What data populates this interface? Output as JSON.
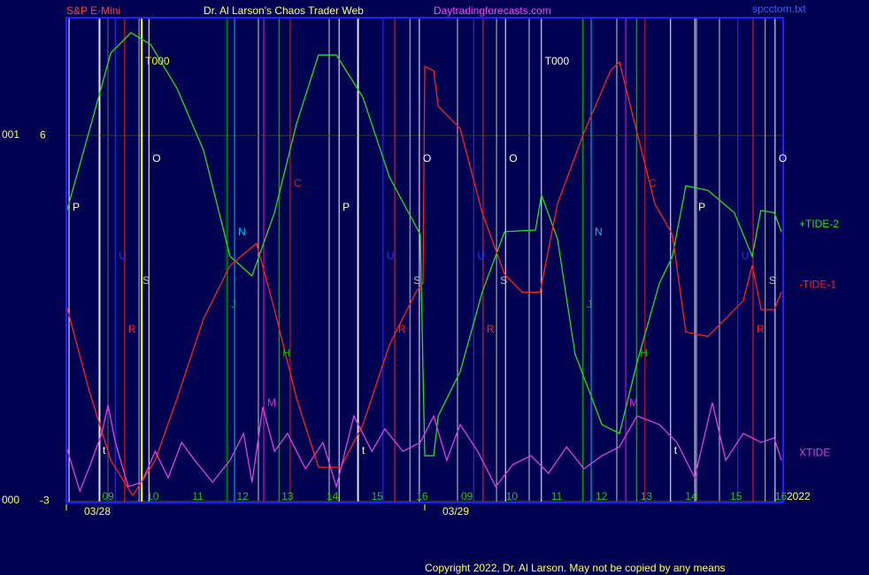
{
  "chart_data": {
    "type": "line",
    "title": "Dr. Al Larson's Chaos Trader Web",
    "instrument": "S&P E-Mini",
    "website": "Daytradingforecasts.com",
    "file_name": "spcctom.txt",
    "copyright": "Copyright 2022, Dr. Al Larson. May not be copied by any means",
    "year": "2022",
    "left_labels": [
      "001",
      "000"
    ],
    "xlim": [
      -0.93,
      15.05
    ],
    "ylim": [
      -3.04,
      8.9
    ],
    "yticks": [
      -3,
      6
    ],
    "grid": true,
    "xticks": [
      {
        "value": 0,
        "label": "09"
      },
      {
        "value": 1,
        "label": "10"
      },
      {
        "value": 2,
        "label": "11"
      },
      {
        "value": 3,
        "label": "12"
      },
      {
        "value": 4,
        "label": "13"
      },
      {
        "value": 5,
        "label": "14"
      },
      {
        "value": 6,
        "label": "15"
      },
      {
        "value": 7,
        "label": "16"
      },
      {
        "value": 8,
        "label": "09"
      },
      {
        "value": 9,
        "label": "10"
      },
      {
        "value": 10,
        "label": "11"
      },
      {
        "value": 11,
        "label": "12"
      },
      {
        "value": 12,
        "label": "13"
      },
      {
        "value": 13,
        "label": "14"
      },
      {
        "value": 14,
        "label": "15"
      },
      {
        "value": 15,
        "label": "16"
      }
    ],
    "date_ticks": [
      {
        "value": -0.93,
        "label": "03/28"
      },
      {
        "value": 7.06,
        "label": "03/29"
      }
    ],
    "series": [
      {
        "name": "+TIDE-2",
        "color": "#20e020",
        "x": [
          -0.93,
          -0.43,
          0.06,
          0.51,
          0.95,
          1.54,
          2.13,
          2.72,
          3.21,
          3.71,
          4.2,
          4.69,
          5.09,
          5.68,
          6.27,
          6.96,
          7.06,
          7.26,
          7.36,
          7.85,
          8.34,
          8.84,
          9.53,
          9.66,
          10.02,
          10.41,
          11.01,
          11.4,
          11.79,
          12.29,
          12.58,
          12.88,
          13.37,
          13.96,
          14.36,
          14.55,
          14.85,
          15.01
        ],
        "values": [
          4.1,
          6.07,
          8.03,
          8.53,
          8.24,
          7.15,
          5.63,
          3.02,
          2.54,
          4.1,
          6.28,
          7.98,
          7.98,
          6.94,
          4.98,
          3.56,
          -1.89,
          -1.89,
          -0.91,
          0.18,
          2.14,
          3.63,
          3.67,
          4.54,
          3.45,
          0.62,
          -1.12,
          -1.34,
          0.4,
          2.36,
          3.02,
          4.76,
          4.65,
          4.1,
          3.02,
          4.15,
          4.1,
          3.63
        ]
      },
      {
        "name": "-TIDE-1",
        "color": "#ff2020",
        "x": [
          -0.93,
          -0.43,
          0.06,
          0.55,
          1.05,
          1.54,
          2.13,
          2.72,
          3.31,
          3.71,
          4.2,
          4.69,
          5.19,
          5.68,
          6.27,
          6.86,
          7.02,
          7.06,
          7.26,
          7.36,
          7.85,
          8.34,
          8.84,
          9.23,
          9.63,
          10.02,
          10.61,
          11.2,
          11.4,
          11.79,
          12.19,
          12.58,
          12.88,
          13.37,
          13.77,
          14.16,
          14.36,
          14.56,
          14.85,
          15.01
        ],
        "values": [
          1.82,
          -0.25,
          -2.0,
          -2.87,
          -2.0,
          -0.47,
          1.49,
          2.8,
          3.34,
          1.71,
          -0.47,
          -2.17,
          -2.17,
          -1.12,
          0.84,
          2.14,
          2.36,
          7.7,
          7.59,
          6.72,
          6.17,
          4.1,
          2.58,
          2.14,
          2.14,
          4.32,
          6.07,
          7.59,
          7.81,
          6.07,
          4.32,
          3.56,
          1.16,
          1.05,
          1.49,
          1.93,
          2.8,
          1.71,
          1.71,
          2.14
        ]
      },
      {
        "name": "XTIDE",
        "color": "#e040e0",
        "x": [
          -0.93,
          -0.63,
          -0.43,
          -0.14,
          0.0,
          0.16,
          0.45,
          0.75,
          1.05,
          1.34,
          1.64,
          1.93,
          2.33,
          2.72,
          3.02,
          3.21,
          3.45,
          3.71,
          4.0,
          4.4,
          4.79,
          5.09,
          5.48,
          5.88,
          6.17,
          6.57,
          6.96,
          7.26,
          7.55,
          7.85,
          8.24,
          8.64,
          9.03,
          9.43,
          9.82,
          10.22,
          10.61,
          11.01,
          11.4,
          11.79,
          12.29,
          12.68,
          13.08,
          13.47,
          13.77,
          14.16,
          14.56,
          14.85,
          15.01
        ],
        "values": [
          -1.67,
          -2.76,
          -2.21,
          -1.34,
          -0.64,
          -1.56,
          -2.65,
          -2.54,
          -1.78,
          -2.43,
          -1.56,
          -2.0,
          -2.54,
          -2.0,
          -1.34,
          -2.54,
          -0.69,
          -1.78,
          -1.34,
          -2.21,
          -1.56,
          -2.65,
          -0.91,
          -1.78,
          -1.23,
          -1.78,
          -1.56,
          -0.91,
          -2.0,
          -1.12,
          -1.78,
          -2.65,
          -2.1,
          -1.89,
          -2.32,
          -1.67,
          -2.21,
          -1.89,
          -1.67,
          -0.91,
          -1.12,
          -1.56,
          -2.43,
          -0.58,
          -2.0,
          -1.34,
          -1.56,
          -1.45,
          -2.0
        ]
      }
    ],
    "events": [
      {
        "label": "T000",
        "x": 0.75,
        "color": "#ffff00"
      },
      {
        "label": "T000",
        "x": 9.66,
        "color": "#ffffff"
      },
      {
        "label": "P",
        "x": -0.87,
        "color": "#ffffff"
      },
      {
        "label": "P",
        "x": 5.15,
        "color": "#ffffff"
      },
      {
        "label": "P",
        "x": 13.08,
        "color": "#ffffff"
      },
      {
        "label": "O",
        "x": 0.91,
        "color": "#ffffff"
      },
      {
        "label": "O",
        "x": 6.94,
        "color": "#ffffff"
      },
      {
        "label": "O",
        "x": 8.86,
        "color": "#ffffff"
      },
      {
        "label": "O",
        "x": 14.87,
        "color": "#ffffff"
      },
      {
        "label": "S",
        "x": 0.69,
        "color": "#c0c0c0"
      },
      {
        "label": "S",
        "x": 6.73,
        "color": "#c0c0c0"
      },
      {
        "label": "S",
        "x": 8.66,
        "color": "#c0c0c0"
      },
      {
        "label": "S",
        "x": 14.65,
        "color": "#c0c0c0"
      },
      {
        "label": "R",
        "x": 0.37,
        "color": "#ff2020"
      },
      {
        "label": "R",
        "x": 6.39,
        "color": "#ff2020"
      },
      {
        "label": "R",
        "x": 8.36,
        "color": "#ff2020"
      },
      {
        "label": "R",
        "x": 14.38,
        "color": "#ff2020"
      },
      {
        "label": "U",
        "x": 0.16,
        "color": "#3030ff"
      },
      {
        "label": "U",
        "x": 6.13,
        "color": "#3030ff"
      },
      {
        "label": "U",
        "x": 8.15,
        "color": "#3030ff"
      },
      {
        "label": "U",
        "x": 14.04,
        "color": "#3030ff"
      },
      {
        "label": "N",
        "x": 2.82,
        "color": "#00c0ff"
      },
      {
        "label": "N",
        "x": 10.77,
        "color": "#00c0ff"
      },
      {
        "label": "J",
        "x": 2.66,
        "color": "#00c000"
      },
      {
        "label": "J",
        "x": 10.59,
        "color": "#00c000"
      },
      {
        "label": "H",
        "x": 3.81,
        "color": "#00c000"
      },
      {
        "label": "H",
        "x": 11.78,
        "color": "#00c000"
      },
      {
        "label": "M",
        "x": 3.47,
        "color": "#e020e0"
      },
      {
        "label": "M",
        "x": 11.54,
        "color": "#e020e0"
      },
      {
        "label": "C",
        "x": 4.06,
        "color": "#e02020"
      },
      {
        "label": "C",
        "x": 11.97,
        "color": "#e02020"
      },
      {
        "label": "t",
        "x": -0.2,
        "color": "#ffffff"
      },
      {
        "label": "t",
        "x": 5.58,
        "color": "#ffffff"
      },
      {
        "label": "t",
        "x": 12.54,
        "color": "#ffffff"
      }
    ]
  }
}
